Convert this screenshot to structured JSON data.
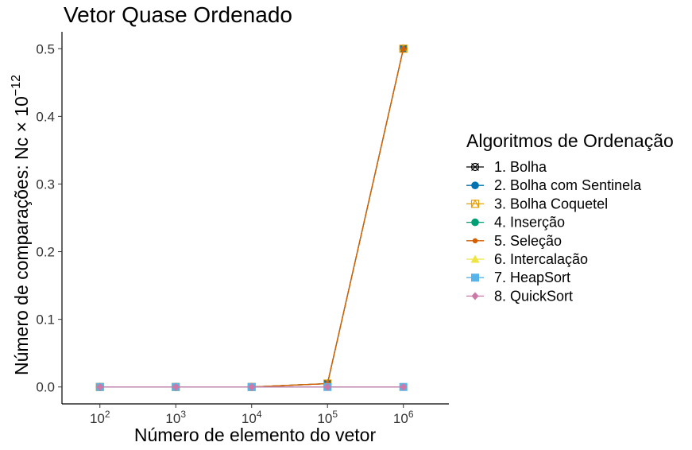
{
  "chart_data": {
    "type": "line",
    "title": "Vetor Quase Ordenado",
    "xlabel": "Número de elemento do vetor",
    "ylabel_main": "Número de comparações: Nc",
    "ylabel_times": "×",
    "ylabel_base": "10",
    "ylabel_exp": "−12",
    "x_scale": "log10",
    "x_base": "10",
    "x_tick_exponents": [
      "2",
      "3",
      "4",
      "5",
      "6"
    ],
    "x": [
      100,
      1000,
      10000,
      100000,
      1000000
    ],
    "y_ticks": [
      "0.0",
      "0.1",
      "0.2",
      "0.3",
      "0.4",
      "0.5"
    ],
    "ylim": [
      -0.025,
      0.525
    ],
    "grid": false,
    "legend_position": "right",
    "legend_title": "Algoritmos de Ordenação",
    "series": [
      {
        "name": "1. Bolha",
        "color": "#000000",
        "marker": "circle-x-open",
        "values": [
          0,
          0,
          0,
          0.005,
          0.5
        ]
      },
      {
        "name": "2. Bolha com Sentinela",
        "color": "#0072B2",
        "marker": "circle-filled",
        "values": [
          0,
          0,
          0,
          0.005,
          0.5
        ]
      },
      {
        "name": "3. Bolha Coquetel",
        "color": "#E69F00",
        "marker": "square-triangle-open",
        "values": [
          0,
          0,
          0,
          0.005,
          0.5
        ]
      },
      {
        "name": "4. Inserção",
        "color": "#009E73",
        "marker": "circle-filled",
        "values": [
          0,
          0,
          0,
          0,
          0
        ]
      },
      {
        "name": "5. Seleção",
        "color": "#D55E00",
        "marker": "small-circle-filled",
        "values": [
          0,
          0,
          0,
          0.005,
          0.5
        ]
      },
      {
        "name": "6. Intercalação",
        "color": "#F0E442",
        "marker": "triangle-filled",
        "values": [
          0,
          0,
          0,
          0,
          0
        ]
      },
      {
        "name": "7. HeapSort",
        "color": "#56B4E9",
        "marker": "square-filled",
        "values": [
          0,
          0,
          0,
          0,
          0
        ]
      },
      {
        "name": "8. QuickSort",
        "color": "#CC79A7",
        "marker": "diamond-filled",
        "values": [
          0,
          0,
          0,
          0,
          0
        ]
      }
    ]
  }
}
